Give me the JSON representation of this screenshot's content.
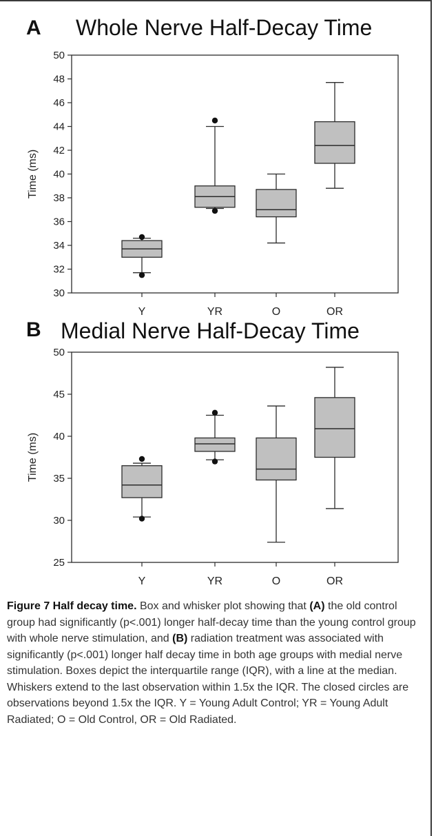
{
  "caption": {
    "title": "Figure 7 Half decay time.",
    "text_1": " Box and whisker plot showing that ",
    "bold_a": "(A)",
    "text_2": " the old control group had significantly (p<.001) longer half-decay time than the young control group with whole nerve stimulation, and ",
    "bold_b": "(B)",
    "text_3": " radiation treatment was associated with significantly (p<.001) longer half decay time in both age groups with medial nerve stimulation. Boxes depict the interquartile range (IQR), with a line at the median. Whiskers extend to the last observation within 1.5x the IQR. The closed circles are observations beyond 1.5x the IQR. Y = Young Adult Control; YR = Young Adult Radiated; O = Old Control, OR = Old Radiated."
  },
  "colors": {
    "box_fill": "#c0c0c0",
    "stroke": "#2b2b2b"
  },
  "chart_data": [
    {
      "type": "box",
      "panel": "A",
      "title": "Whole Nerve Half-Decay Time",
      "ylabel": "Time (ms)",
      "ylim": [
        30,
        50
      ],
      "yticks": [
        30,
        32,
        34,
        36,
        38,
        40,
        42,
        44,
        46,
        48,
        50
      ],
      "categories": [
        "Y",
        "YR",
        "O",
        "OR"
      ],
      "boxes": [
        {
          "category": "Y",
          "whisker_low": 31.7,
          "q1": 33.0,
          "median": 33.7,
          "q3": 34.4,
          "whisker_high": 34.6,
          "outliers": [
            31.5,
            34.7
          ]
        },
        {
          "category": "YR",
          "whisker_low": 37.1,
          "q1": 37.2,
          "median": 38.1,
          "q3": 39.0,
          "whisker_high": 44.0,
          "outliers": [
            36.9,
            44.5
          ]
        },
        {
          "category": "O",
          "whisker_low": 34.2,
          "q1": 36.4,
          "median": 37.0,
          "q3": 38.7,
          "whisker_high": 40.0,
          "outliers": []
        },
        {
          "category": "OR",
          "whisker_low": 38.8,
          "q1": 40.9,
          "median": 42.4,
          "q3": 44.4,
          "whisker_high": 47.7,
          "outliers": []
        }
      ]
    },
    {
      "type": "box",
      "panel": "B",
      "title": "Medial Nerve Half-Decay Time",
      "ylabel": "Time (ms)",
      "ylim": [
        25,
        50
      ],
      "yticks": [
        25,
        30,
        35,
        40,
        45,
        50
      ],
      "categories": [
        "Y",
        "YR",
        "O",
        "OR"
      ],
      "boxes": [
        {
          "category": "Y",
          "whisker_low": 30.4,
          "q1": 32.7,
          "median": 34.2,
          "q3": 36.5,
          "whisker_high": 36.8,
          "outliers": [
            30.2,
            37.3
          ]
        },
        {
          "category": "YR",
          "whisker_low": 37.2,
          "q1": 38.2,
          "median": 39.1,
          "q3": 39.8,
          "whisker_high": 42.5,
          "outliers": [
            37.0,
            42.8
          ]
        },
        {
          "category": "O",
          "whisker_low": 27.4,
          "q1": 34.8,
          "median": 36.1,
          "q3": 39.8,
          "whisker_high": 43.6,
          "outliers": []
        },
        {
          "category": "OR",
          "whisker_low": 31.4,
          "q1": 37.5,
          "median": 40.9,
          "q3": 44.6,
          "whisker_high": 48.2,
          "outliers": []
        }
      ]
    }
  ]
}
